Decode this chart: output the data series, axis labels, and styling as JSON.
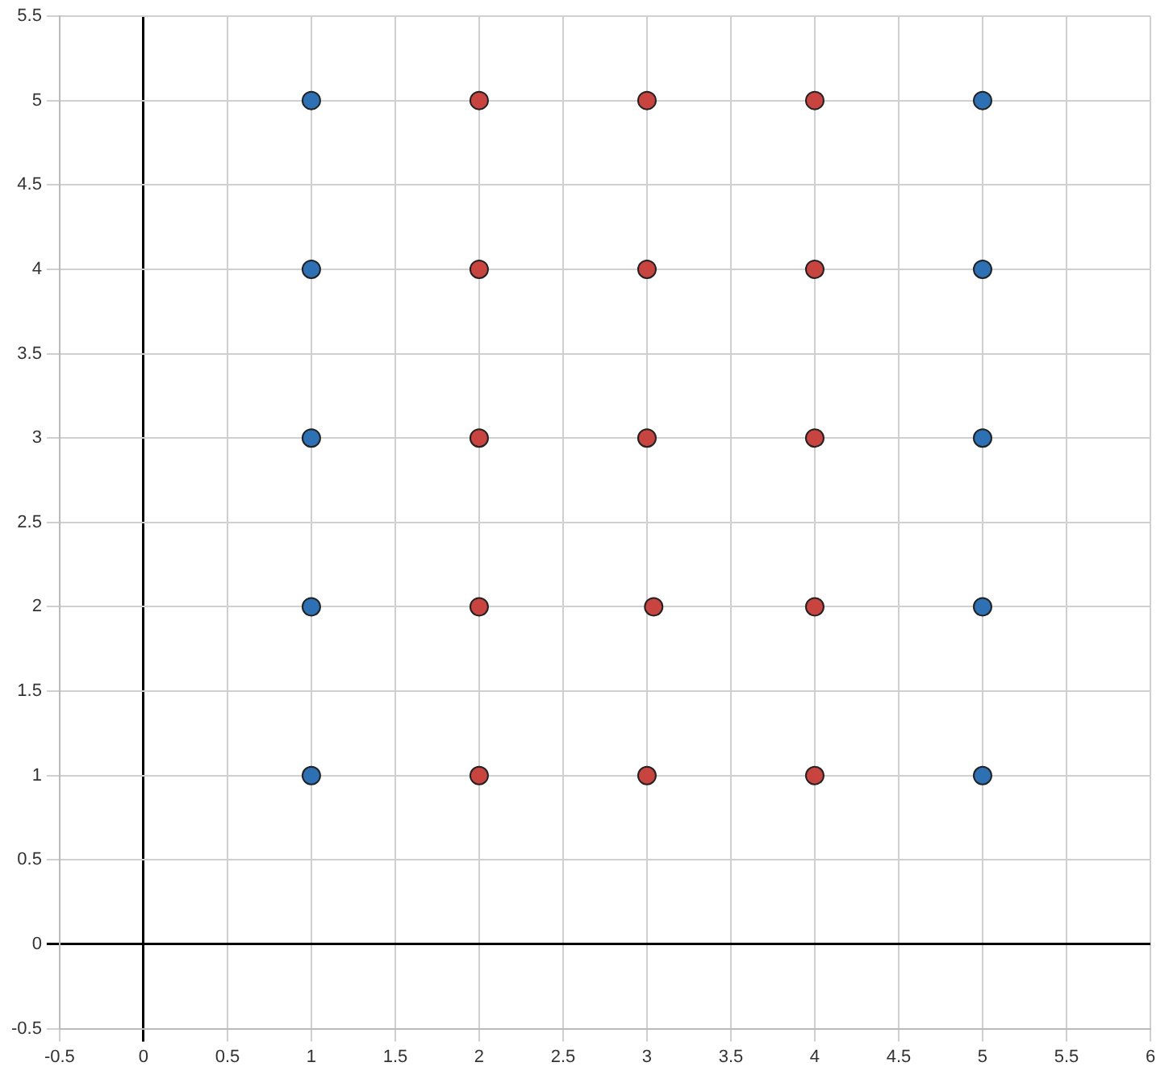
{
  "chart_data": {
    "type": "scatter",
    "marker": "circle",
    "grid": true,
    "legend": false,
    "xlim": [
      -0.5,
      6
    ],
    "ylim": [
      -0.5,
      5.5
    ],
    "xticks": [
      -0.5,
      0,
      0.5,
      1,
      1.5,
      2,
      2.5,
      3,
      3.5,
      4,
      4.5,
      5,
      5.5,
      6
    ],
    "yticks": [
      -0.5,
      0,
      0.5,
      1,
      1.5,
      2,
      2.5,
      3,
      3.5,
      4,
      4.5,
      5,
      5.5
    ],
    "series": [
      {
        "color": "#2d70b3",
        "x": [
          1,
          1,
          1,
          1,
          1,
          5,
          5,
          5,
          5,
          5
        ],
        "values": [
          1,
          2,
          3,
          4,
          5,
          1,
          2,
          3,
          4,
          5
        ]
      },
      {
        "color": "#c74440",
        "x": [
          2,
          2,
          2,
          2,
          2,
          3,
          3.04,
          3,
          3,
          3,
          4,
          4,
          4,
          4,
          4
        ],
        "values": [
          1,
          2,
          3,
          4,
          5,
          1,
          2,
          3,
          4,
          5,
          1,
          2,
          3,
          4,
          5
        ]
      }
    ]
  }
}
